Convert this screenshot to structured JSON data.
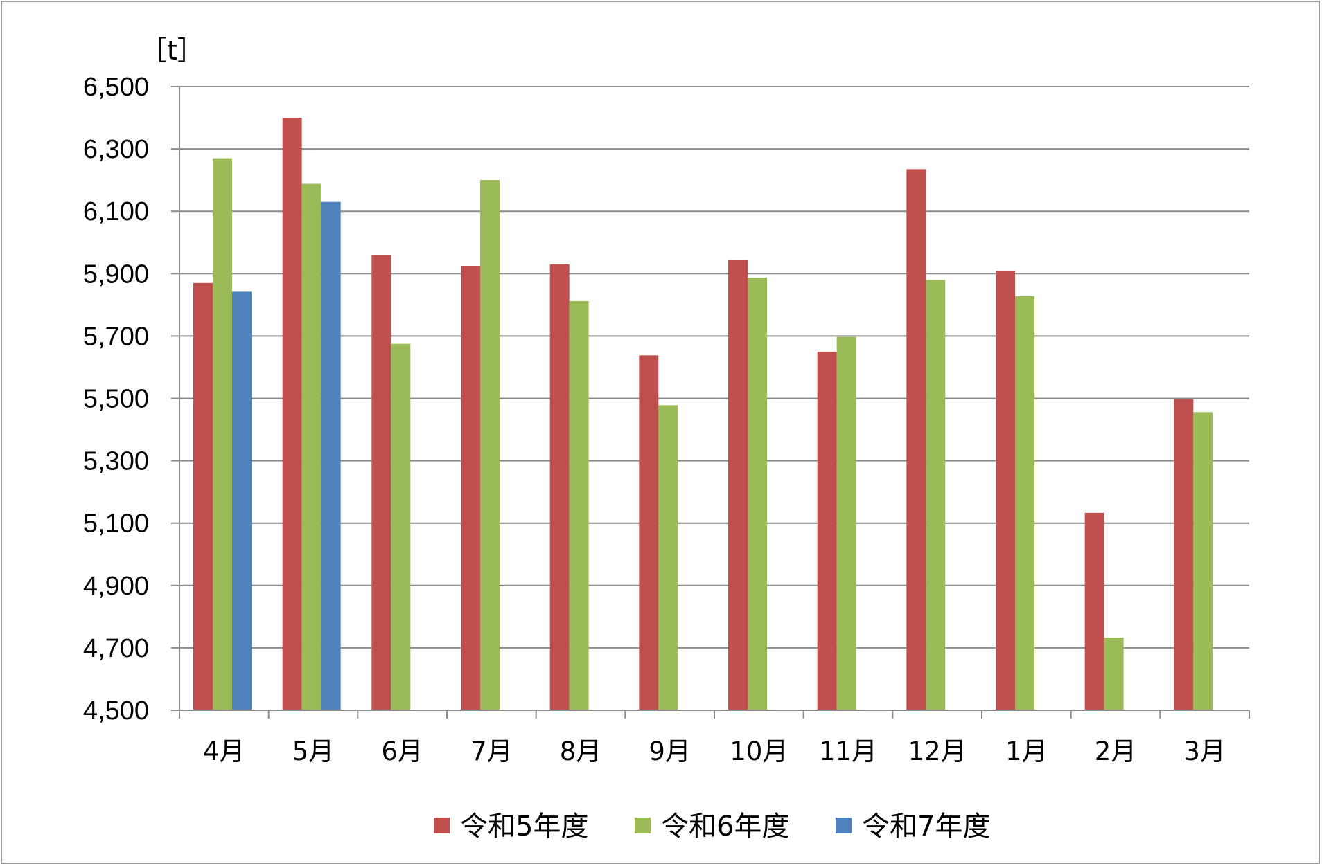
{
  "chart_data": {
    "type": "bar",
    "unit_label": "［t］",
    "categories": [
      "4月",
      "5月",
      "6月",
      "7月",
      "8月",
      "9月",
      "10月",
      "11月",
      "12月",
      "1月",
      "2月",
      "3月"
    ],
    "y_ticks": [
      "6,500",
      "6,300",
      "6,100",
      "5,900",
      "5,700",
      "5,500",
      "5,300",
      "5,100",
      "4,900",
      "4,700",
      "4,500"
    ],
    "ylim": [
      4500,
      6500
    ],
    "grid": true,
    "legend_position": "bottom",
    "series": [
      {
        "name": "令和5年度",
        "color": "#c0504d",
        "values": [
          5870,
          6400,
          5960,
          5925,
          5930,
          5638,
          5943,
          5650,
          6235,
          5908,
          5133,
          5498
        ]
      },
      {
        "name": "令和6年度",
        "color": "#9bbb59",
        "values": [
          6270,
          6188,
          5675,
          6200,
          5812,
          5478,
          5887,
          5697,
          5880,
          5828,
          4733,
          5456
        ]
      },
      {
        "name": "令和7年度",
        "color": "#4f81bd",
        "values": [
          5842,
          6130,
          null,
          null,
          null,
          null,
          null,
          null,
          null,
          null,
          null,
          null
        ]
      }
    ]
  }
}
